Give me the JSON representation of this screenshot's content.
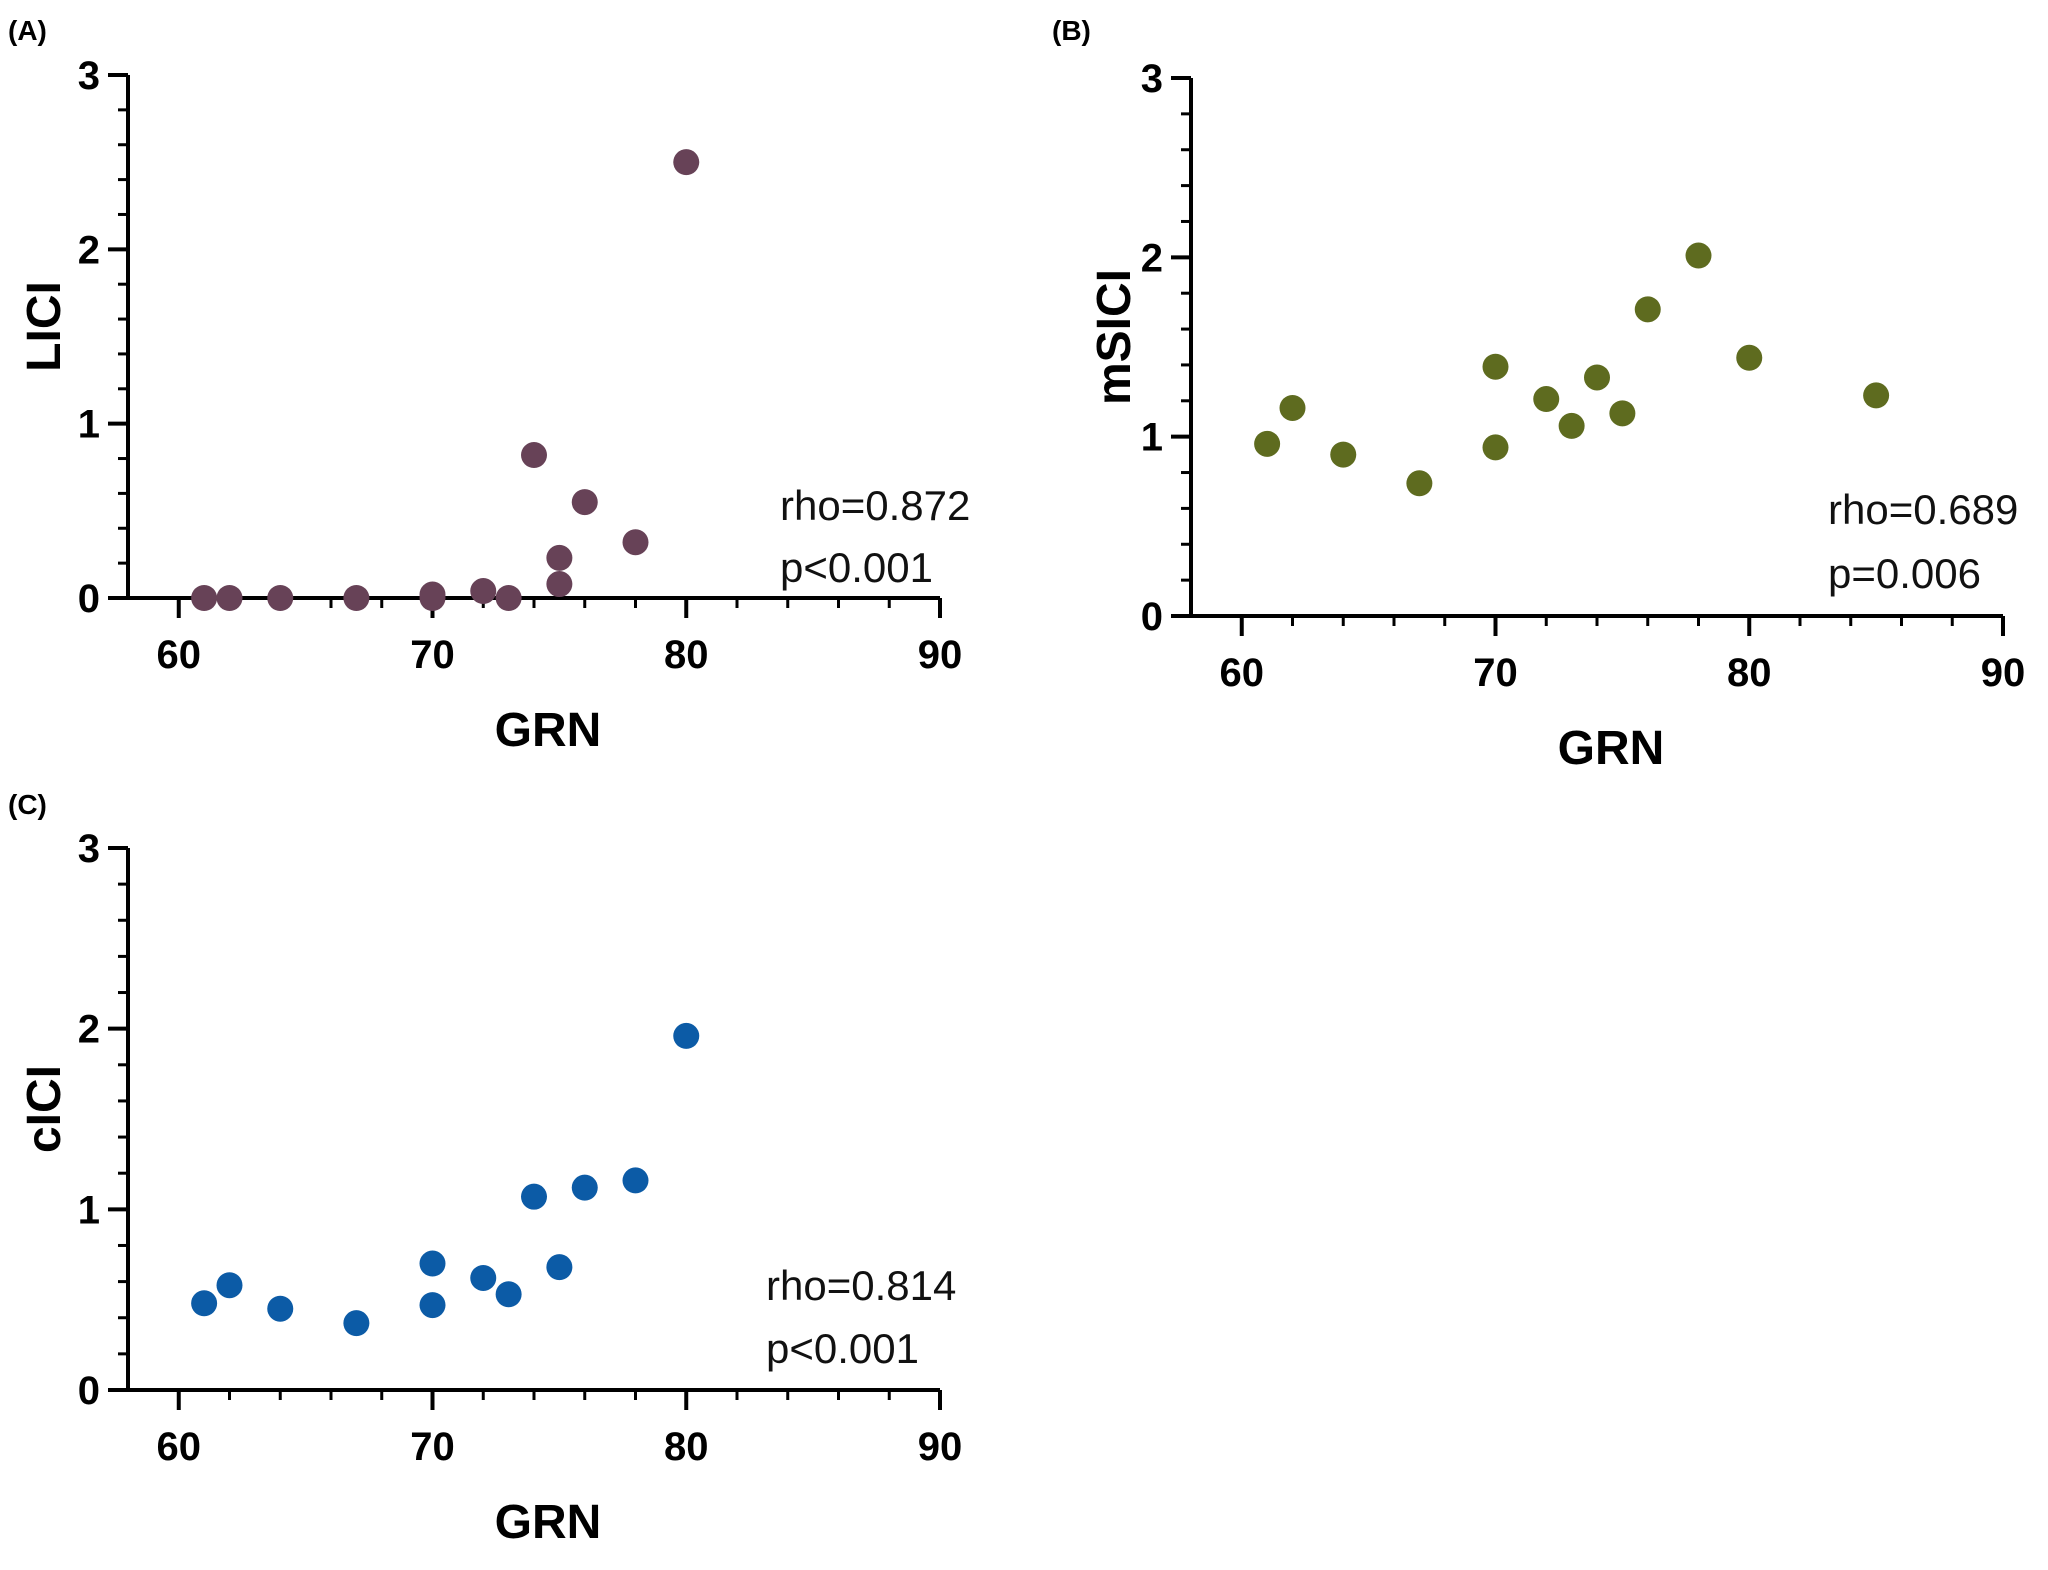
{
  "chart_data": [
    {
      "type": "scatter",
      "panel_label": "(A)",
      "xlabel": "GRN",
      "ylabel": "LICI",
      "xlim": [
        58,
        90
      ],
      "ylim": [
        0,
        3
      ],
      "xticks": [
        60,
        70,
        80,
        90
      ],
      "yticks": [
        0,
        1,
        2,
        3
      ],
      "color": "#674257",
      "points": [
        {
          "x": 61,
          "y": 0.0
        },
        {
          "x": 62,
          "y": 0.0
        },
        {
          "x": 64,
          "y": 0.0
        },
        {
          "x": 67,
          "y": 0.0
        },
        {
          "x": 70,
          "y": 0.02
        },
        {
          "x": 70,
          "y": 0.0
        },
        {
          "x": 72,
          "y": 0.04
        },
        {
          "x": 73,
          "y": 0.0
        },
        {
          "x": 74,
          "y": 0.82
        },
        {
          "x": 75,
          "y": 0.23
        },
        {
          "x": 75,
          "y": 0.08
        },
        {
          "x": 76,
          "y": 0.55
        },
        {
          "x": 78,
          "y": 0.32
        },
        {
          "x": 80,
          "y": 2.5
        }
      ],
      "annotations": [
        "rho=0.872",
        "p<0.001"
      ]
    },
    {
      "type": "scatter",
      "panel_label": "(B)",
      "xlabel": "GRN",
      "ylabel": "mSICI",
      "xlim": [
        58,
        90
      ],
      "ylim": [
        0,
        3
      ],
      "xticks": [
        60,
        70,
        80,
        90
      ],
      "yticks": [
        0,
        1,
        2,
        3
      ],
      "color": "#5e6b1f",
      "points": [
        {
          "x": 61,
          "y": 0.96
        },
        {
          "x": 62,
          "y": 1.16
        },
        {
          "x": 64,
          "y": 0.9
        },
        {
          "x": 67,
          "y": 0.74
        },
        {
          "x": 70,
          "y": 1.39
        },
        {
          "x": 70,
          "y": 0.94
        },
        {
          "x": 72,
          "y": 1.21
        },
        {
          "x": 73,
          "y": 1.06
        },
        {
          "x": 74,
          "y": 1.33
        },
        {
          "x": 75,
          "y": 1.13
        },
        {
          "x": 76,
          "y": 1.71
        },
        {
          "x": 78,
          "y": 2.01
        },
        {
          "x": 80,
          "y": 1.44
        },
        {
          "x": 85,
          "y": 1.23
        }
      ],
      "annotations": [
        "rho=0.689",
        "p=0.006"
      ]
    },
    {
      "type": "scatter",
      "panel_label": "(C)",
      "xlabel": "GRN",
      "ylabel": "cICI",
      "xlim": [
        58,
        90
      ],
      "ylim": [
        0,
        3
      ],
      "xticks": [
        60,
        70,
        80,
        90
      ],
      "yticks": [
        0,
        1,
        2,
        3
      ],
      "color": "#0c5ba6",
      "points": [
        {
          "x": 61,
          "y": 0.48
        },
        {
          "x": 62,
          "y": 0.58
        },
        {
          "x": 64,
          "y": 0.45
        },
        {
          "x": 67,
          "y": 0.37
        },
        {
          "x": 70,
          "y": 0.7
        },
        {
          "x": 70,
          "y": 0.47
        },
        {
          "x": 72,
          "y": 0.62
        },
        {
          "x": 73,
          "y": 0.53
        },
        {
          "x": 74,
          "y": 1.07
        },
        {
          "x": 75,
          "y": 0.68
        },
        {
          "x": 76,
          "y": 1.12
        },
        {
          "x": 78,
          "y": 1.16
        },
        {
          "x": 80,
          "y": 1.96
        }
      ],
      "annotations": [
        "rho=0.814",
        "p<0.001"
      ]
    }
  ]
}
